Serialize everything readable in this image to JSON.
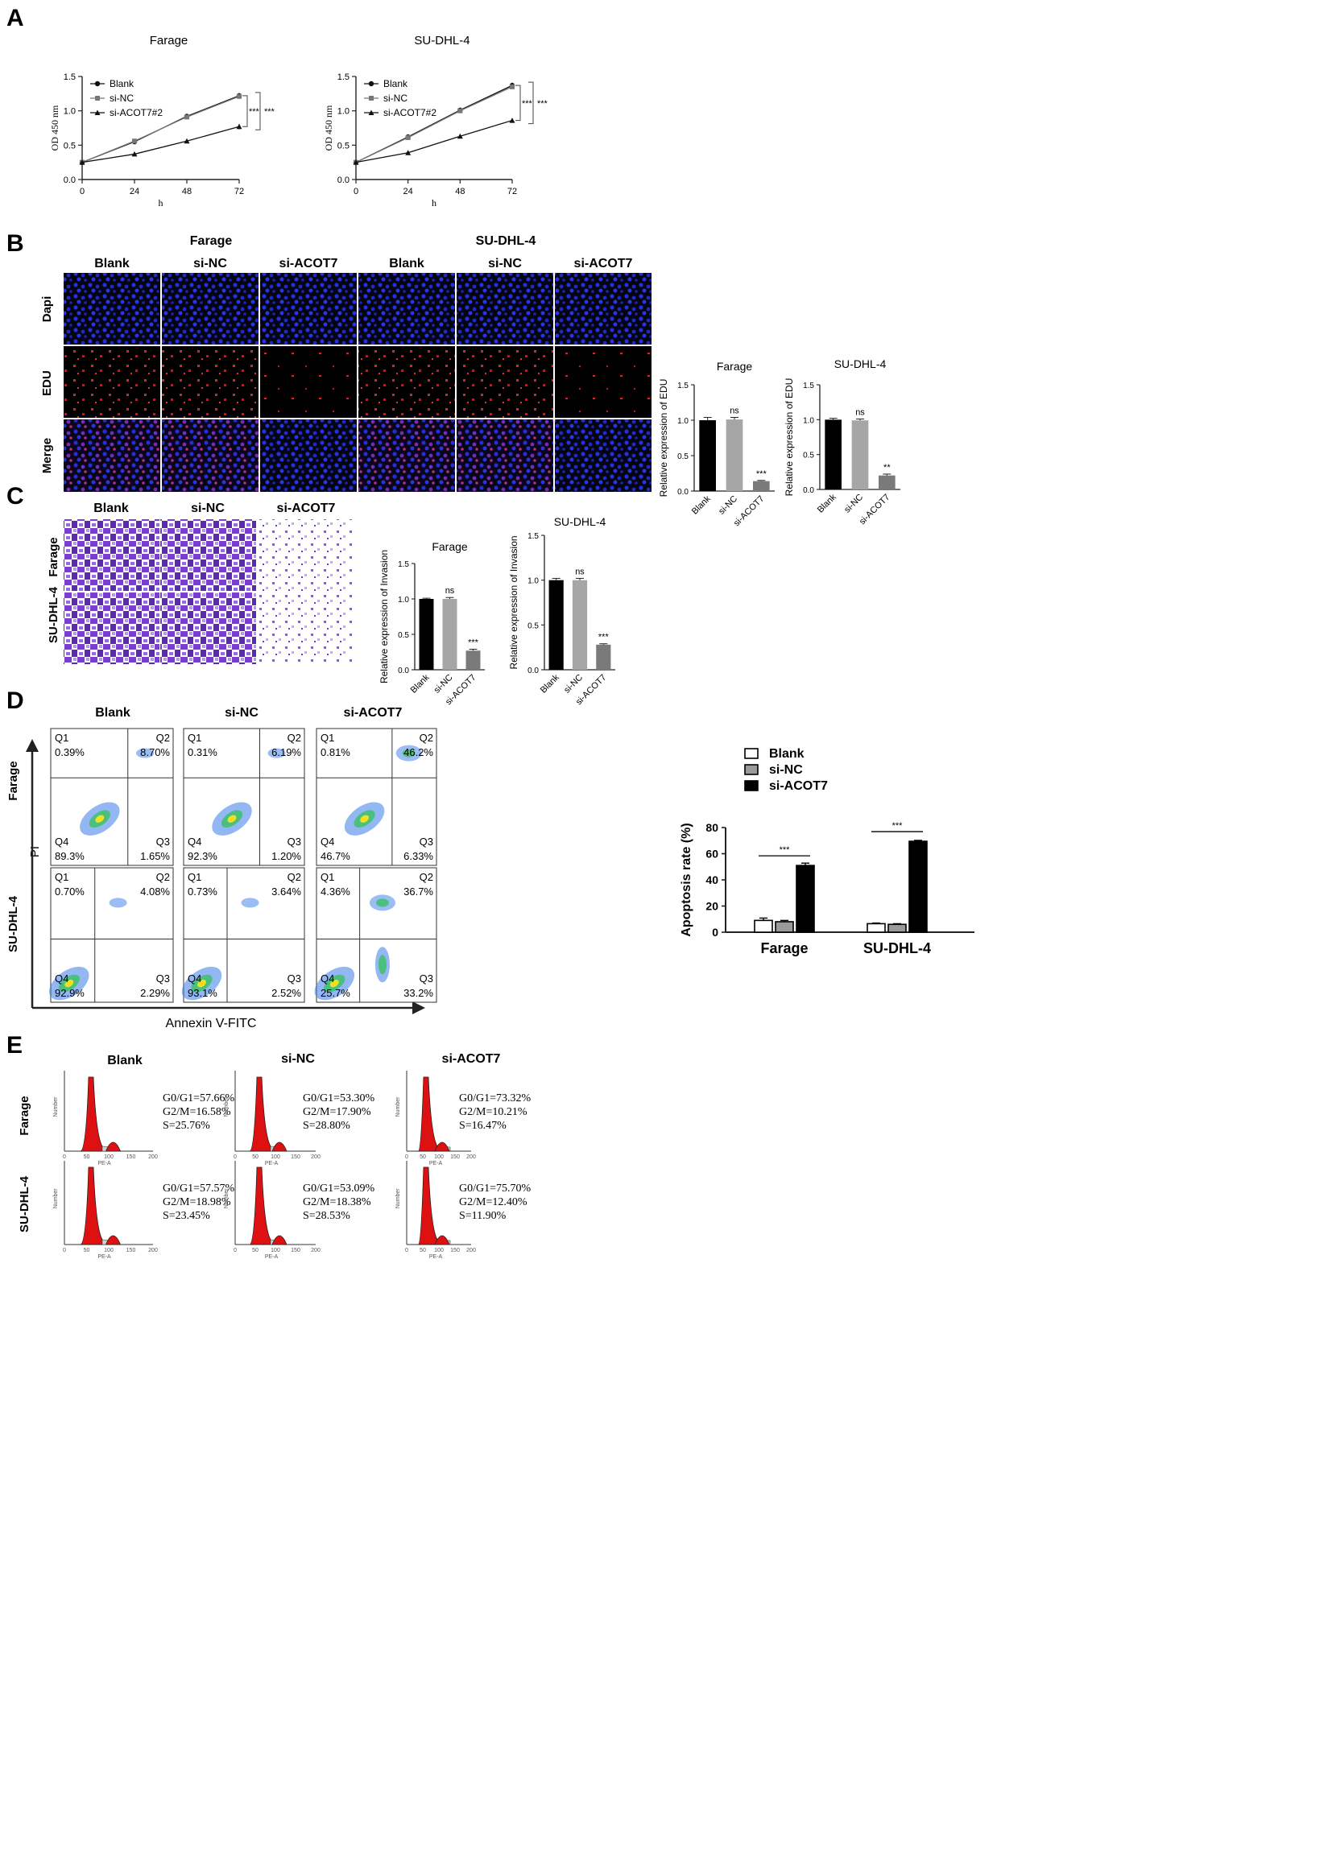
{
  "panel_letters": {
    "a": "A",
    "b": "B",
    "c": "C",
    "d": "D",
    "e": "E"
  },
  "colors": {
    "dapi": "#1f2bd6",
    "edu": "#e0202a",
    "stain": "#7a3fd0",
    "bar_blank": "#000000",
    "bar_sinc": "#a6a6a6",
    "bar_si": "#7a7a7a",
    "cycle_fill": "#dd1111"
  },
  "panel_a": {
    "xlabel": "h",
    "ylabel": "OD 450 nm",
    "series_names": [
      "Blank",
      "si-NC",
      "si-ACOT7#2"
    ],
    "sig": "***"
  },
  "panel_b": {
    "group_farage": "Farage",
    "group_sudhl": "SU-DHL-4",
    "columns": [
      "Blank",
      "si-NC",
      "si-ACOT7",
      "Blank",
      "si-NC",
      "si-ACOT7"
    ],
    "rows": [
      "Dapi",
      "EDU",
      "Merge"
    ],
    "ylabel": "Relative expression of EDU"
  },
  "panel_c": {
    "columns": [
      "Blank",
      "si-NC",
      "si-ACOT7"
    ],
    "rows": [
      "Farage",
      "SU-DHL-4"
    ],
    "ylabel": "Relative expression of Invasion"
  },
  "panel_d": {
    "columns": [
      "Blank",
      "si-NC",
      "si-ACOT7"
    ],
    "rows": [
      "Farage",
      "SU-DHL-4"
    ],
    "y_axis_label": "PI",
    "x_axis_label": "Annexin V-FITC",
    "quadrant_names": [
      "Q1",
      "Q2",
      "Q3",
      "Q4"
    ],
    "plots": [
      {
        "q1": "0.39%",
        "q2": "8.70%",
        "q3": "1.65%",
        "q4": "89.3%"
      },
      {
        "q1": "0.31%",
        "q2": "6.19%",
        "q3": "1.20%",
        "q4": "92.3%"
      },
      {
        "q1": "0.81%",
        "q2": "46.2%",
        "q3": "6.33%",
        "q4": "46.7%"
      },
      {
        "q1": "0.70%",
        "q2": "4.08%",
        "q3": "2.29%",
        "q4": "92.9%"
      },
      {
        "q1": "0.73%",
        "q2": "3.64%",
        "q3": "2.52%",
        "q4": "93.1%"
      },
      {
        "q1": "4.36%",
        "q2": "36.7%",
        "q3": "33.2%",
        "q4": "25.7%"
      }
    ],
    "legend": [
      "Blank",
      "si-NC",
      "si-ACOT7"
    ]
  },
  "panel_e": {
    "columns": [
      "Blank",
      "si-NC",
      "si-ACOT7"
    ],
    "rows": [
      "Farage",
      "SU-DHL-4"
    ],
    "xlabel": "PE-A",
    "ylabel": "Number",
    "xticks": [
      "0",
      "50",
      "100",
      "150",
      "200"
    ],
    "plots": [
      {
        "g0g1": "G0/G1=57.66%",
        "g2m": "G2/M=16.58%",
        "s": "S=25.76%"
      },
      {
        "g0g1": "G0/G1=53.30%",
        "g2m": "G2/M=17.90%",
        "s": "S=28.80%"
      },
      {
        "g0g1": "G0/G1=73.32%",
        "g2m": "G2/M=10.21%",
        "s": "S=16.47%"
      },
      {
        "g0g1": "G0/G1=57.57%",
        "g2m": "G2/M=18.98%",
        "s": "S=23.45%"
      },
      {
        "g0g1": "G0/G1=53.09%",
        "g2m": "G2/M=18.38%",
        "s": "S=28.53%"
      },
      {
        "g0g1": "G0/G1=75.70%",
        "g2m": "G2/M=12.40%",
        "s": "S=11.90%"
      }
    ]
  },
  "chart_data": [
    {
      "type": "line",
      "title": "Farage",
      "xlabel": "h",
      "ylabel": "OD 450 nm",
      "x": [
        0,
        24,
        48,
        72
      ],
      "xlim": [
        0,
        72
      ],
      "ylim": [
        0.0,
        1.5
      ],
      "xticks": [
        0,
        24,
        48,
        72
      ],
      "yticks": [
        "0.0",
        "0.5",
        "1.0",
        "1.5"
      ],
      "series": [
        {
          "name": "Blank",
          "values": [
            0.25,
            0.55,
            0.92,
            1.22
          ],
          "err": [
            0.01,
            0.02,
            0.01,
            0.04
          ],
          "marker": "circle"
        },
        {
          "name": "si-NC",
          "values": [
            0.25,
            0.56,
            0.91,
            1.21
          ],
          "err": [
            0.01,
            0.02,
            0.01,
            0.03
          ],
          "marker": "square"
        },
        {
          "name": "si-ACOT7#2",
          "values": [
            0.25,
            0.37,
            0.56,
            0.77
          ],
          "err": [
            0.01,
            0.01,
            0.01,
            0.04
          ],
          "marker": "triangle"
        }
      ],
      "legend": "top-left",
      "annotation": "*** ***"
    },
    {
      "type": "line",
      "title": "SU-DHL-4",
      "xlabel": "h",
      "ylabel": "OD 450 nm",
      "x": [
        0,
        24,
        48,
        72
      ],
      "xlim": [
        0,
        72
      ],
      "ylim": [
        0.0,
        1.5
      ],
      "xticks": [
        0,
        24,
        48,
        72
      ],
      "yticks": [
        "0.0",
        "0.5",
        "1.0",
        "1.5"
      ],
      "series": [
        {
          "name": "Blank",
          "values": [
            0.25,
            0.62,
            1.01,
            1.37
          ],
          "err": [
            0.01,
            0.02,
            0.01,
            0.04
          ],
          "marker": "circle"
        },
        {
          "name": "si-NC",
          "values": [
            0.25,
            0.61,
            1.0,
            1.35
          ],
          "err": [
            0.01,
            0.02,
            0.01,
            0.03
          ],
          "marker": "square"
        },
        {
          "name": "si-ACOT7#2",
          "values": [
            0.25,
            0.39,
            0.63,
            0.86
          ],
          "err": [
            0.01,
            0.01,
            0.01,
            0.01
          ],
          "marker": "triangle"
        }
      ],
      "legend": "top-left",
      "annotation": "*** ***"
    },
    {
      "type": "bar",
      "title": "Farage",
      "ylabel": "Relative expression of EDU",
      "categories": [
        "Blank",
        "si-NC",
        "si-ACOT7"
      ],
      "values": [
        1.0,
        1.01,
        0.14
      ],
      "err": [
        0.04,
        0.03,
        0.01
      ],
      "sig": [
        "",
        "ns",
        "***"
      ],
      "ylim": [
        0.0,
        1.5
      ],
      "yticks": [
        "0.0",
        "0.5",
        "1.0",
        "1.5"
      ]
    },
    {
      "type": "bar",
      "title": "SU-DHL-4",
      "ylabel": "Relative expression of EDU",
      "categories": [
        "Blank",
        "si-NC",
        "si-ACOT7"
      ],
      "values": [
        1.0,
        0.99,
        0.2
      ],
      "err": [
        0.02,
        0.02,
        0.02
      ],
      "sig": [
        "",
        "ns",
        "**"
      ],
      "ylim": [
        0.0,
        1.5
      ],
      "yticks": [
        "0.0",
        "0.5",
        "1.0",
        "1.5"
      ]
    },
    {
      "type": "bar",
      "title": "Farage",
      "ylabel": "Relative expression of Invasion",
      "categories": [
        "Blank",
        "si-NC",
        "si-ACOT7"
      ],
      "values": [
        1.0,
        1.0,
        0.27
      ],
      "err": [
        0.01,
        0.02,
        0.02
      ],
      "sig": [
        "",
        "ns",
        "***"
      ],
      "ylim": [
        0.0,
        1.5
      ],
      "yticks": [
        "0.0",
        "0.5",
        "1.0",
        "1.5"
      ]
    },
    {
      "type": "bar",
      "title": "SU-DHL-4",
      "ylabel": "Relative expression of Invasion",
      "categories": [
        "Blank",
        "si-NC",
        "si-ACOT7"
      ],
      "values": [
        1.0,
        1.0,
        0.28
      ],
      "err": [
        0.02,
        0.02,
        0.01
      ],
      "sig": [
        "",
        "ns",
        "***"
      ],
      "ylim": [
        0.0,
        1.5
      ],
      "yticks": [
        "0.0",
        "0.5",
        "1.0",
        "1.5"
      ]
    },
    {
      "type": "bar",
      "title": "",
      "ylabel": "Apoptosis rate (%)",
      "categories": [
        "Farage",
        "SU-DHL-4"
      ],
      "ylim": [
        0,
        80
      ],
      "yticks": [
        "0",
        "20",
        "40",
        "60",
        "80"
      ],
      "series": [
        {
          "name": "Blank",
          "values": [
            9,
            6.5
          ],
          "err": [
            1.8,
            0.5
          ]
        },
        {
          "name": "si-NC",
          "values": [
            8,
            6
          ],
          "err": [
            1.0,
            0.5
          ]
        },
        {
          "name": "si-ACOT7",
          "values": [
            51,
            69.5
          ],
          "err": [
            1.8,
            0.7
          ]
        }
      ],
      "legend": "top-left",
      "sig": [
        "***",
        "***"
      ]
    }
  ]
}
